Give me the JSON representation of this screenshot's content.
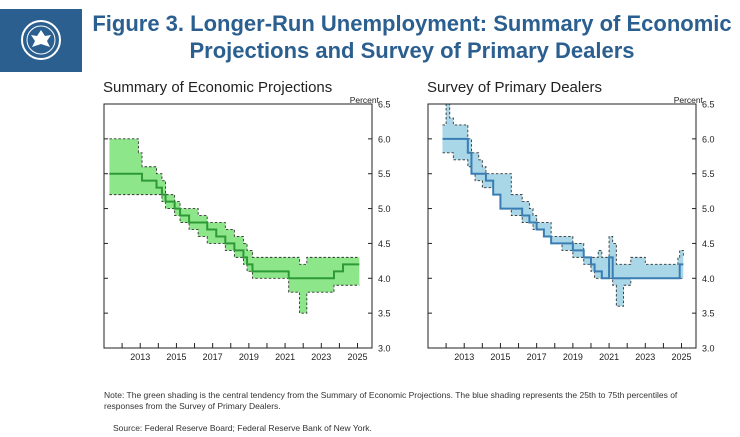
{
  "header": {
    "title_line1": "Figure 3. Longer-Run Unemployment: Summary of Economic",
    "title_line2": "Projections and Survey of Primary Dealers",
    "logo_icon": "federal-reserve-seal-icon"
  },
  "colors": {
    "brand": "#2b5f8f",
    "sep_fill": "#8ee68a",
    "sep_line": "#2e9a36",
    "spd_fill": "#a9d7e8",
    "spd_line": "#3a7db3"
  },
  "chart_data": [
    {
      "type": "area",
      "title": "Summary of Economic Projections",
      "ylabel": "Percent",
      "xlim": [
        2011,
        2025.8
      ],
      "ylim": [
        3.0,
        6.5
      ],
      "yticks": [
        3.0,
        3.5,
        4.0,
        4.5,
        5.0,
        5.5,
        6.0,
        6.5
      ],
      "xticks": [
        2013,
        2015,
        2017,
        2019,
        2021,
        2023,
        2025
      ],
      "series": [
        {
          "name": "Central tendency high",
          "x": [
            2011.3,
            2012.4,
            2012.9,
            2013.1,
            2013.4,
            2013.9,
            2014.2,
            2014.4,
            2014.9,
            2015.2,
            2015.7,
            2016.2,
            2016.7,
            2017.2,
            2017.7,
            2018.2,
            2018.7,
            2018.9,
            2019.2,
            2020.7,
            2021.2,
            2021.8,
            2022.2,
            2022.5,
            2023.2,
            2023.7,
            2024.2,
            2024.5,
            2025.1
          ],
          "values": [
            6.0,
            6.0,
            5.8,
            5.6,
            5.6,
            5.5,
            5.4,
            5.2,
            5.1,
            5.0,
            5.0,
            4.9,
            4.8,
            4.8,
            4.7,
            4.6,
            4.5,
            4.4,
            4.3,
            4.3,
            4.3,
            4.2,
            4.3,
            4.3,
            4.3,
            4.3,
            4.3,
            4.3,
            4.3
          ]
        },
        {
          "name": "Central tendency low",
          "x": [
            2011.3,
            2012.4,
            2012.9,
            2013.1,
            2013.4,
            2013.9,
            2014.2,
            2014.4,
            2014.9,
            2015.2,
            2015.7,
            2016.2,
            2016.7,
            2017.2,
            2017.7,
            2018.2,
            2018.7,
            2018.9,
            2019.2,
            2020.7,
            2021.2,
            2021.5,
            2021.8,
            2022.2,
            2022.5,
            2023.2,
            2023.7,
            2024.2,
            2024.5,
            2025.1
          ],
          "values": [
            5.2,
            5.2,
            5.2,
            5.2,
            5.2,
            5.2,
            5.1,
            5.0,
            4.9,
            4.8,
            4.7,
            4.6,
            4.5,
            4.5,
            4.4,
            4.3,
            4.2,
            4.1,
            4.0,
            4.0,
            3.8,
            3.8,
            3.5,
            3.8,
            3.8,
            3.8,
            3.9,
            3.9,
            3.9,
            3.9
          ]
        },
        {
          "name": "Median",
          "x": [
            2011.3,
            2012.4,
            2012.9,
            2013.1,
            2013.4,
            2013.9,
            2014.2,
            2014.4,
            2014.9,
            2015.2,
            2015.7,
            2016.2,
            2016.7,
            2017.2,
            2017.7,
            2018.2,
            2018.7,
            2018.9,
            2019.2,
            2020.7,
            2021.2,
            2021.5,
            2021.8,
            2022.2,
            2022.5,
            2023.2,
            2023.7,
            2024.2,
            2024.5,
            2025.1
          ],
          "values": [
            5.5,
            5.5,
            5.5,
            5.4,
            5.4,
            5.3,
            5.2,
            5.1,
            5.0,
            4.9,
            4.8,
            4.8,
            4.7,
            4.6,
            4.5,
            4.4,
            4.3,
            4.2,
            4.1,
            4.1,
            4.0,
            4.0,
            4.0,
            4.0,
            4.0,
            4.0,
            4.1,
            4.2,
            4.2,
            4.2
          ]
        }
      ]
    },
    {
      "type": "area",
      "title": "Survey of Primary Dealers",
      "ylabel": "Percent",
      "xlim": [
        2011,
        2025.8
      ],
      "ylim": [
        3.0,
        6.5
      ],
      "yticks": [
        3.0,
        3.5,
        4.0,
        4.5,
        5.0,
        5.5,
        6.0,
        6.5
      ],
      "xticks": [
        2013,
        2015,
        2017,
        2019,
        2021,
        2023,
        2025
      ],
      "series": [
        {
          "name": "75th percentile",
          "x": [
            2011.8,
            2012.0,
            2012.2,
            2012.4,
            2012.8,
            2013.2,
            2013.4,
            2013.6,
            2013.8,
            2014.0,
            2014.2,
            2014.6,
            2015.0,
            2015.6,
            2016.0,
            2016.2,
            2016.6,
            2016.8,
            2017.0,
            2017.4,
            2017.8,
            2018.4,
            2019.0,
            2019.2,
            2019.6,
            2020.0,
            2020.2,
            2020.4,
            2020.6,
            2020.8,
            2021.0,
            2021.2,
            2021.4,
            2021.6,
            2021.8,
            2022.0,
            2022.2,
            2022.6,
            2023.0,
            2023.4,
            2023.8,
            2024.2,
            2024.6,
            2024.8,
            2024.9,
            2025.1
          ],
          "values": [
            6.2,
            6.5,
            6.3,
            6.2,
            6.2,
            6.0,
            5.8,
            5.8,
            5.7,
            5.6,
            5.5,
            5.5,
            5.5,
            5.2,
            5.2,
            5.1,
            5.0,
            4.9,
            4.8,
            4.8,
            4.6,
            4.6,
            4.5,
            4.5,
            4.3,
            4.3,
            4.3,
            4.4,
            4.3,
            4.3,
            4.6,
            4.5,
            4.2,
            4.2,
            4.2,
            4.2,
            4.3,
            4.3,
            4.2,
            4.2,
            4.2,
            4.2,
            4.2,
            4.3,
            4.4,
            4.3
          ]
        },
        {
          "name": "25th percentile",
          "x": [
            2011.8,
            2012.0,
            2012.2,
            2012.4,
            2012.8,
            2013.2,
            2013.4,
            2013.6,
            2013.8,
            2014.0,
            2014.2,
            2014.6,
            2015.0,
            2015.6,
            2016.0,
            2016.2,
            2016.6,
            2016.8,
            2017.0,
            2017.4,
            2017.8,
            2018.4,
            2019.0,
            2019.2,
            2019.6,
            2020.0,
            2020.2,
            2020.4,
            2020.6,
            2020.8,
            2021.0,
            2021.2,
            2021.4,
            2021.6,
            2021.8,
            2022.0,
            2022.2,
            2022.6,
            2023.0,
            2023.4,
            2023.8,
            2024.2,
            2024.6,
            2024.8,
            2024.9,
            2025.1
          ],
          "values": [
            5.8,
            5.8,
            5.8,
            5.7,
            5.7,
            5.6,
            5.5,
            5.4,
            5.4,
            5.3,
            5.3,
            5.2,
            5.0,
            4.9,
            4.9,
            4.8,
            4.8,
            4.7,
            4.7,
            4.6,
            4.5,
            4.4,
            4.3,
            4.3,
            4.2,
            4.1,
            4.0,
            4.0,
            4.0,
            4.0,
            4.0,
            3.9,
            3.6,
            3.6,
            3.9,
            3.9,
            4.0,
            4.0,
            4.0,
            4.0,
            4.0,
            4.0,
            4.0,
            4.0,
            4.0,
            4.0
          ]
        },
        {
          "name": "Median",
          "x": [
            2011.8,
            2012.0,
            2012.2,
            2012.4,
            2012.8,
            2013.2,
            2013.4,
            2013.6,
            2013.8,
            2014.0,
            2014.2,
            2014.6,
            2015.0,
            2015.6,
            2016.0,
            2016.2,
            2016.6,
            2016.8,
            2017.0,
            2017.4,
            2017.8,
            2018.4,
            2019.0,
            2019.2,
            2019.6,
            2020.0,
            2020.2,
            2020.4,
            2020.6,
            2020.8,
            2021.0,
            2021.2,
            2021.4,
            2021.6,
            2021.8,
            2022.0,
            2022.2,
            2022.6,
            2023.0,
            2023.4,
            2023.8,
            2024.2,
            2024.6,
            2024.8,
            2024.9,
            2025.1
          ],
          "values": [
            6.0,
            6.0,
            6.0,
            6.0,
            6.0,
            5.8,
            5.5,
            5.5,
            5.5,
            5.5,
            5.4,
            5.2,
            5.0,
            5.0,
            5.0,
            4.9,
            4.8,
            4.8,
            4.7,
            4.6,
            4.5,
            4.5,
            4.4,
            4.4,
            4.3,
            4.2,
            4.1,
            4.1,
            4.0,
            4.0,
            4.3,
            4.0,
            4.0,
            4.0,
            4.0,
            4.0,
            4.0,
            4.0,
            4.0,
            4.0,
            4.0,
            4.0,
            4.0,
            4.0,
            4.2,
            4.2
          ]
        }
      ]
    }
  ],
  "footer": {
    "note": "Note: The green shading is the central tendency from the Summary of Economic Projections. The blue shading represents the 25th to 75th percentiles of responses from the Survey of Primary Dealers.",
    "source": "Source: Federal Reserve Board; Federal Reserve Bank of New York."
  }
}
